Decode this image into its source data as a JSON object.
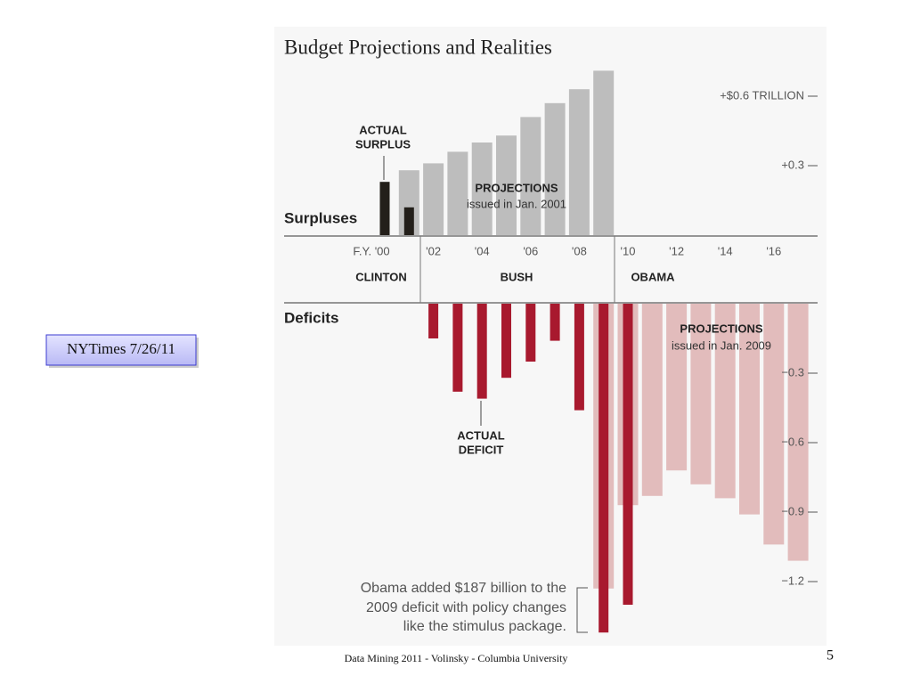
{
  "slide": {
    "source_box": "NYTimes 7/26/11",
    "footer": "Data Mining 2011  - Volinsky - Columbia University",
    "page_number": 5
  },
  "chart_data": {
    "type": "bar",
    "title": "Budget Projections and Realities",
    "categories": [
      "F.Y. '00",
      null,
      "'02",
      null,
      "'04",
      null,
      "'06",
      null,
      "'08",
      null,
      "'10",
      null,
      "'12",
      null,
      "'14",
      null,
      "'16",
      null
    ],
    "series": [
      {
        "color": "#bdbdbd",
        "values": [
          null,
          0.28,
          0.31,
          0.36,
          0.4,
          0.43,
          0.51,
          0.57,
          0.63,
          0.71,
          null,
          null,
          null,
          null,
          null,
          null,
          null,
          null
        ]
      },
      {
        "color": "#e2bcbc",
        "values": [
          null,
          null,
          null,
          null,
          null,
          null,
          null,
          null,
          null,
          -1.23,
          -0.87,
          -0.83,
          -0.72,
          -0.78,
          -0.84,
          -0.91,
          -1.04,
          -1.11
        ]
      },
      {
        "color": "#231f1a",
        "values": [
          0.23,
          0.12,
          null,
          null,
          null,
          null,
          null,
          null,
          null,
          null,
          null,
          null,
          null,
          null,
          null,
          null,
          null,
          null
        ]
      },
      {
        "color": "#a8192e",
        "values": [
          null,
          null,
          -0.15,
          -0.38,
          -0.41,
          -0.32,
          -0.25,
          -0.16,
          -0.46,
          -1.42,
          -1.3,
          null,
          null,
          null,
          null,
          null,
          null,
          null
        ]
      }
    ],
    "ylim": [
      -1.45,
      0.75
    ],
    "yticks": [
      {
        "value": 0.6,
        "label": "+$0.6 TRILLION"
      },
      {
        "value": 0.3,
        "label": "+0.3"
      },
      {
        "value": -0.3,
        "label": "−0.3"
      },
      {
        "value": -0.6,
        "label": "−0.6"
      },
      {
        "value": -0.9,
        "label": "−0.9"
      },
      {
        "value": -1.2,
        "label": "−1.2"
      }
    ],
    "section_labels": [
      "Surpluses",
      "Deficits"
    ],
    "presidents": [
      "CLINTON",
      "BUSH",
      "OBAMA"
    ],
    "annotations": [
      {
        "lines": [
          "ACTUAL",
          "SURPLUS"
        ]
      },
      {
        "lines": [
          "PROJECTIONS",
          "issued in Jan. 2001"
        ]
      },
      {
        "lines": [
          "PROJECTIONS",
          "issued in Jan. 2009"
        ]
      },
      {
        "lines": [
          "ACTUAL",
          "DEFICIT"
        ]
      },
      {
        "lines": [
          "Obama added $187 billion to the",
          "2009 deficit with policy changes",
          "like the stimulus package."
        ]
      }
    ]
  }
}
